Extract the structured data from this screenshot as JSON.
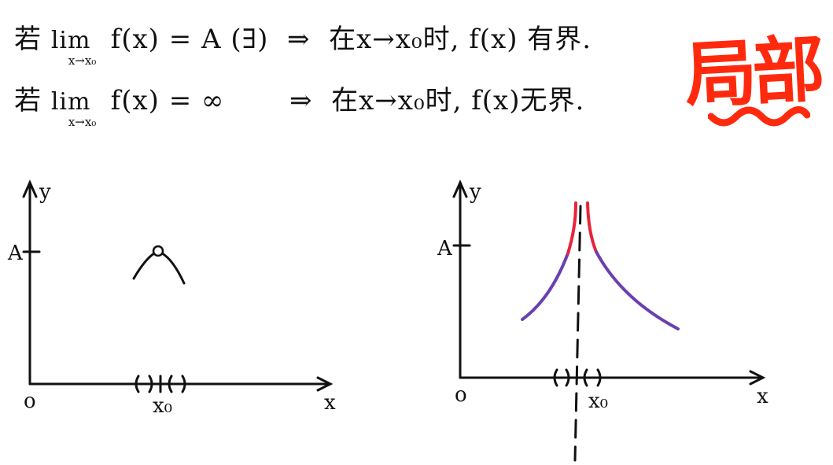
{
  "statements": {
    "line1": {
      "prefix": "若",
      "lim_word": "lim",
      "lim_sub": "x→x₀",
      "expr": "f(x) = A (∃)",
      "arrow": "⇒",
      "conclusion": "在x→x₀时, f(x) 有界."
    },
    "line2": {
      "prefix": "若",
      "lim_word": "lim",
      "lim_sub": "x→x₀",
      "expr": "f(x) = ∞",
      "arrow": "⇒",
      "conclusion": "在x→x₀时, f(x)无界."
    }
  },
  "stamp": {
    "text": "局部",
    "color": "#ff2a0e"
  },
  "graph_left": {
    "y_label": "y",
    "x_label": "x",
    "origin_label": "o",
    "level_label": "A",
    "point_label": "x₀",
    "neighborhood_marks": "( ) | ( )",
    "curve_color": "#111111"
  },
  "graph_right": {
    "y_label": "y",
    "x_label": "x",
    "origin_label": "o",
    "level_label": "A",
    "point_label": "x₀",
    "neighborhood_marks": "( ) | ( )",
    "upper_curve_color": "#e8243a",
    "lower_curve_color": "#6b3fb0"
  }
}
